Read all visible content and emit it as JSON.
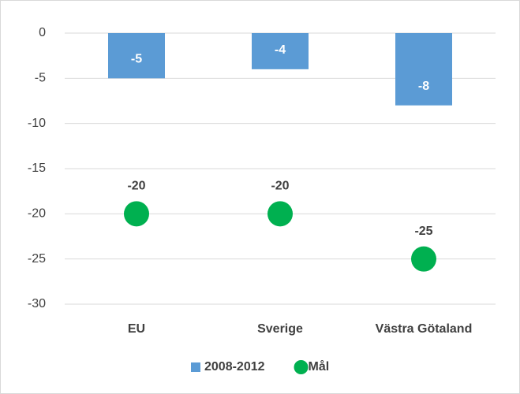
{
  "chart_data": {
    "type": "bar",
    "categories": [
      "EU",
      "Sverige",
      "Västra Götaland"
    ],
    "series": [
      {
        "name": "2008-2012",
        "type": "bar",
        "color": "#5b9bd5",
        "values": [
          -5,
          -4,
          -8
        ]
      },
      {
        "name": "Mål",
        "type": "scatter",
        "color": "#00b050",
        "values": [
          -20,
          -20,
          -25
        ]
      }
    ],
    "ylim": [
      -30,
      0
    ],
    "yticks": [
      0,
      -5,
      -10,
      -15,
      -20,
      -25,
      -30
    ],
    "grid": true,
    "legend": "bottom"
  }
}
